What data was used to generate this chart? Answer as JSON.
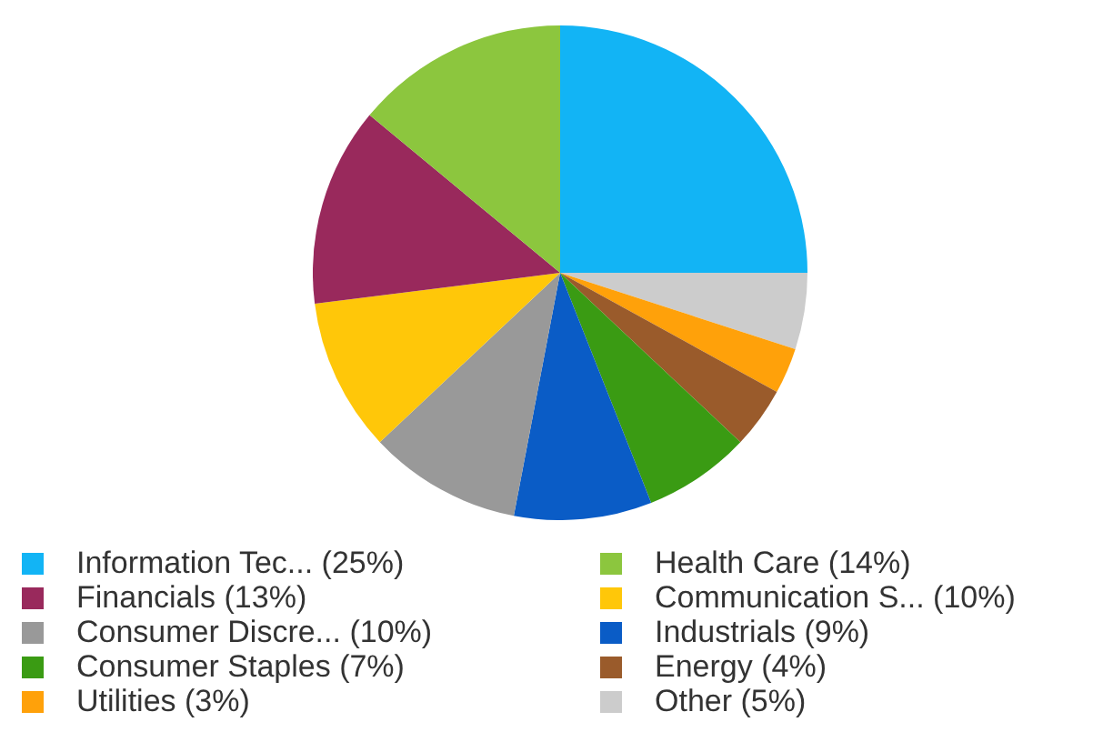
{
  "chart_data": {
    "type": "pie",
    "categories": [
      "Information Tec... (25%)",
      "Health Care (14%)",
      "Financials (13%)",
      "Communication S... (10%)",
      "Consumer Discre... (10%)",
      "Industrials (9%)",
      "Consumer Staples (7%)",
      "Energy (4%)",
      "Utilities (3%)",
      "Other (5%)"
    ],
    "values": [
      25,
      14,
      13,
      10,
      10,
      9,
      7,
      4,
      3,
      5
    ],
    "colors": [
      "#12b4f5",
      "#8cc63e",
      "#99295c",
      "#ffc709",
      "#999999",
      "#0a5cc6",
      "#3a9b13",
      "#9a5b2b",
      "#ffa10a",
      "#cccccc"
    ],
    "legend": "bottom"
  }
}
